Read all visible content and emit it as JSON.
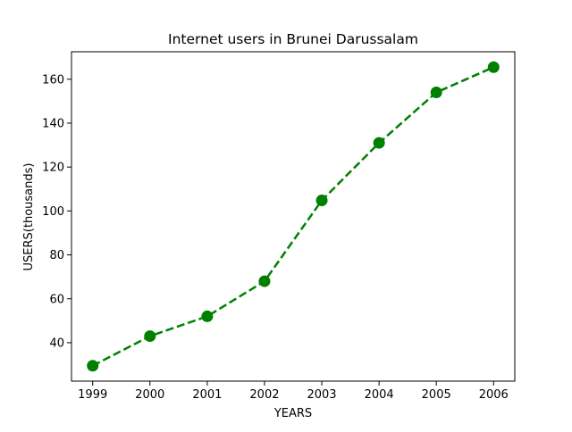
{
  "chart_data": {
    "type": "line",
    "title": "Internet users in Brunei Darussalam",
    "xlabel": "YEARS",
    "ylabel": "USERS(thousands)",
    "x": [
      "1999",
      "2000",
      "2001",
      "2002",
      "2003",
      "2004",
      "2005",
      "2006"
    ],
    "series": [
      {
        "values": [
          29.5,
          43,
          52,
          68,
          104.8,
          131,
          154,
          165.5
        ],
        "color": "#008000",
        "line_style": "dashed",
        "marker": "circle"
      }
    ],
    "yticks": [
      40,
      60,
      80,
      100,
      120,
      140,
      160
    ],
    "ylim": [
      22.5,
      172.5
    ],
    "xlim": [
      1998.63,
      2006.37
    ],
    "grid": false,
    "legend": "none"
  }
}
